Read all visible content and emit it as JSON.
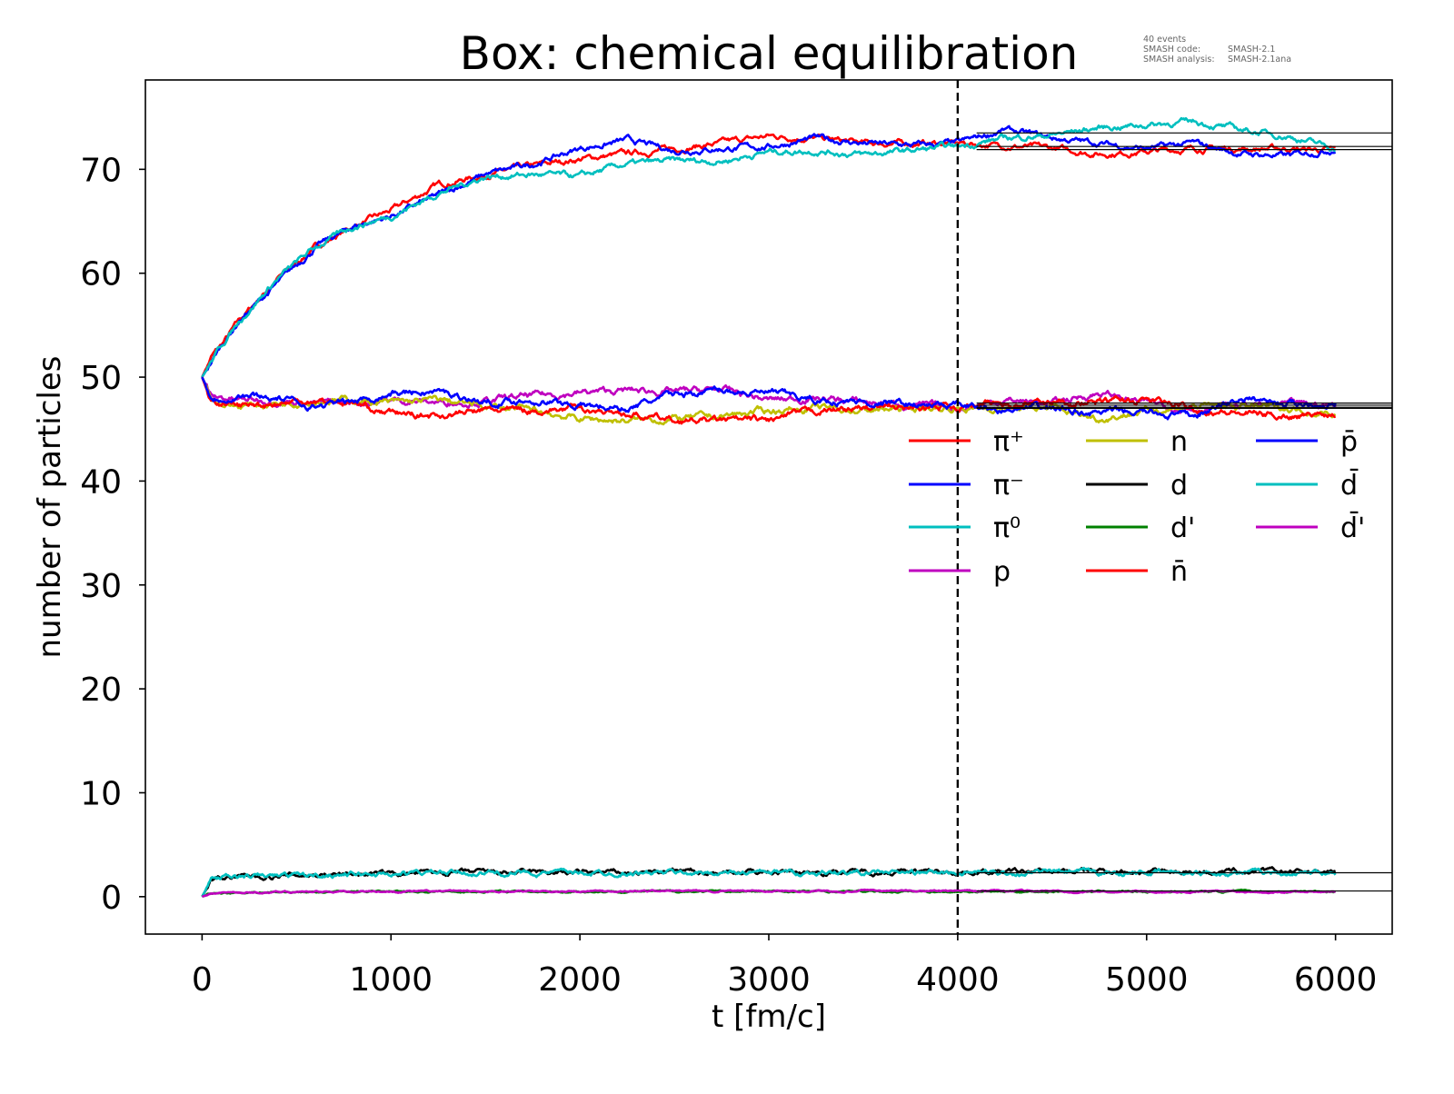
{
  "chart_data": {
    "type": "line",
    "title": "Box: chemical equilibration",
    "annotation": {
      "events": "40 events",
      "code_label": "SMASH code:",
      "code_value": "SMASH-2.1",
      "analysis_label": "SMASH analysis:",
      "analysis_value": "SMASH-2.1ana"
    },
    "xlabel": "t [fm/c]",
    "ylabel": "number of particles",
    "xlim": [
      -300,
      6300
    ],
    "ylim": [
      -3.6,
      78.6
    ],
    "xticks": [
      0,
      1000,
      2000,
      3000,
      4000,
      5000,
      6000
    ],
    "yticks": [
      0,
      10,
      20,
      30,
      40,
      50,
      60,
      70
    ],
    "grid": false,
    "legend_placement": "center-right",
    "legend_columns": 3,
    "vline": {
      "x": 4000,
      "style": "dashed",
      "color": "#000000"
    },
    "reference_lines": {
      "x_start": 4100,
      "color": "#000000",
      "values": [
        73.5,
        72.2,
        71.9,
        47.5,
        47.3,
        47.1,
        47.0,
        2.3,
        0.55
      ]
    },
    "x": [
      0,
      50,
      100,
      200,
      400,
      600,
      800,
      1000,
      1250,
      1500,
      1750,
      2000,
      2250,
      2500,
      2750,
      3000,
      3250,
      3500,
      3750,
      4000,
      4250,
      4500,
      4750,
      5000,
      5250,
      5500,
      5750,
      6000
    ],
    "series": [
      {
        "name": "π⁺",
        "color": "#ff0000",
        "noise": 0.35,
        "values": [
          50,
          52,
          53,
          55.5,
          59.5,
          62.5,
          64.5,
          66,
          68.5,
          69.5,
          70.3,
          71,
          71.5,
          72,
          72.5,
          73.2,
          73,
          72.5,
          72.5,
          72.5,
          72.3,
          72,
          71.5,
          71.7,
          72,
          72,
          72,
          71.8
        ]
      },
      {
        "name": "π⁻",
        "color": "#0000ff",
        "noise": 0.35,
        "values": [
          50,
          51.5,
          53,
          55.5,
          59,
          62.5,
          64.5,
          65.5,
          67.5,
          69.5,
          70.5,
          72,
          72.8,
          71.8,
          72,
          72.2,
          73,
          72.5,
          72.3,
          72.5,
          73.8,
          73,
          72.5,
          72,
          72.5,
          71.5,
          71.3,
          72
        ]
      },
      {
        "name": "π⁰",
        "color": "#00bfbf",
        "noise": 0.35,
        "values": [
          50,
          51.5,
          53,
          55.5,
          59.5,
          62.5,
          64.5,
          65.5,
          67.7,
          69.3,
          69.5,
          69.3,
          70.5,
          70.8,
          70.8,
          71.7,
          71.8,
          71.4,
          71.8,
          72.2,
          73,
          73.3,
          74,
          74.3,
          74.6,
          73.8,
          73.2,
          72
        ]
      },
      {
        "name": "p",
        "color": "#bf00bf",
        "noise": 0.4,
        "values": [
          50,
          48,
          48,
          47.8,
          47.8,
          47.5,
          47.5,
          47.8,
          47.6,
          47.7,
          48.2,
          48.5,
          48.7,
          48.6,
          48.8,
          47.8,
          48,
          47.6,
          47.3,
          47,
          47.8,
          47.5,
          48.5,
          47.5,
          47,
          47.3,
          47.3,
          47.3
        ]
      },
      {
        "name": "n",
        "color": "#bfbf00",
        "noise": 0.4,
        "values": [
          50,
          48,
          47.5,
          47.2,
          47.5,
          47.8,
          47.8,
          47.5,
          47.8,
          47.2,
          46.8,
          46,
          45.8,
          46,
          46.2,
          46.8,
          47,
          46.8,
          47,
          47,
          47,
          47,
          46,
          46.8,
          47.2,
          47.2,
          47,
          46.5
        ]
      },
      {
        "name": "d",
        "color": "#000000",
        "noise": 0.3,
        "values": [
          0,
          1.6,
          1.8,
          1.9,
          2,
          2.1,
          2.2,
          2.2,
          2.3,
          2.3,
          2.3,
          2.3,
          2.3,
          2.4,
          2.4,
          2.4,
          2.4,
          2.4,
          2.4,
          2.4,
          2.4,
          2.4,
          2.5,
          2.4,
          2.4,
          2.4,
          2.4,
          2.5
        ]
      },
      {
        "name": "d'",
        "color": "#008000",
        "noise": 0.1,
        "values": [
          0,
          0.3,
          0.35,
          0.4,
          0.45,
          0.45,
          0.5,
          0.5,
          0.5,
          0.5,
          0.5,
          0.5,
          0.5,
          0.5,
          0.5,
          0.5,
          0.5,
          0.5,
          0.5,
          0.5,
          0.5,
          0.5,
          0.5,
          0.5,
          0.5,
          0.5,
          0.5,
          0.5
        ]
      },
      {
        "name": "n̄",
        "color": "#ff0000",
        "noise": 0.4,
        "values": [
          50,
          47.5,
          47.5,
          47.2,
          47.5,
          47.8,
          47.5,
          46.5,
          46.3,
          46.8,
          46.8,
          47,
          46.5,
          45.8,
          45.8,
          45.8,
          46.8,
          47,
          47,
          47.2,
          47.5,
          47.6,
          47.6,
          47.8,
          47,
          46.5,
          46.3,
          46.5
        ]
      },
      {
        "name": "p̄",
        "color": "#0000ff",
        "noise": 0.4,
        "values": [
          50,
          48,
          48,
          48.3,
          48,
          47.2,
          47.6,
          48.5,
          48.6,
          47.6,
          47.8,
          47.3,
          47,
          48.3,
          48.8,
          48.5,
          47.8,
          47.6,
          47.4,
          47.2,
          46.8,
          47,
          46.6,
          46.6,
          46.2,
          48,
          47.5,
          47.5
        ]
      },
      {
        "name": "d̄",
        "color": "#00bfbf",
        "noise": 0.3,
        "values": [
          0,
          1.7,
          1.8,
          1.9,
          2,
          2.1,
          2.2,
          2.2,
          2.3,
          2.3,
          2.3,
          2.3,
          2.3,
          2.3,
          2.3,
          2.3,
          2.3,
          2.3,
          2.3,
          2.3,
          2.3,
          2.3,
          2.3,
          2.3,
          2.3,
          2.3,
          2.3,
          2.3
        ]
      },
      {
        "name": "d̄'",
        "color": "#bf00bf",
        "noise": 0.1,
        "values": [
          0,
          0.3,
          0.35,
          0.4,
          0.45,
          0.5,
          0.5,
          0.5,
          0.5,
          0.5,
          0.5,
          0.55,
          0.55,
          0.55,
          0.55,
          0.55,
          0.55,
          0.55,
          0.55,
          0.55,
          0.55,
          0.55,
          0.5,
          0.5,
          0.5,
          0.5,
          0.5,
          0.5
        ]
      }
    ]
  }
}
